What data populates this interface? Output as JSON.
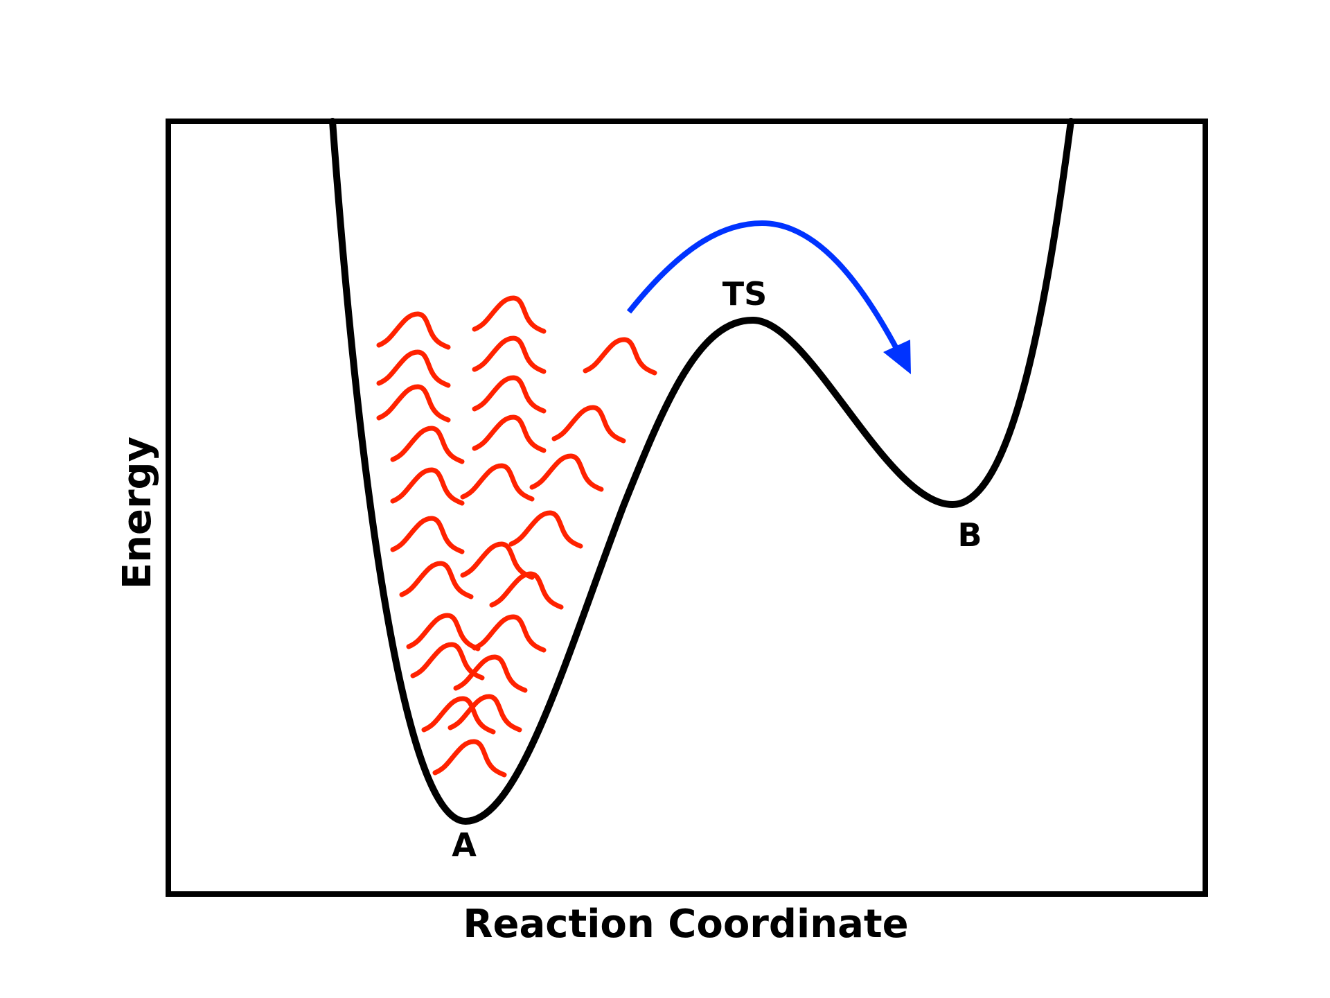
{
  "axes": {
    "x_label": "Reaction Coordinate",
    "y_label": "Energy"
  },
  "labels": {
    "reactant": "A",
    "transition_state": "TS",
    "product": "B"
  },
  "colors": {
    "curve": "#000000",
    "vibrations": "#ff2200",
    "arrow": "#0033ff"
  },
  "icons": {
    "vibration": "wavy-packet-icon",
    "reaction_arrow": "curved-arrow-icon"
  }
}
